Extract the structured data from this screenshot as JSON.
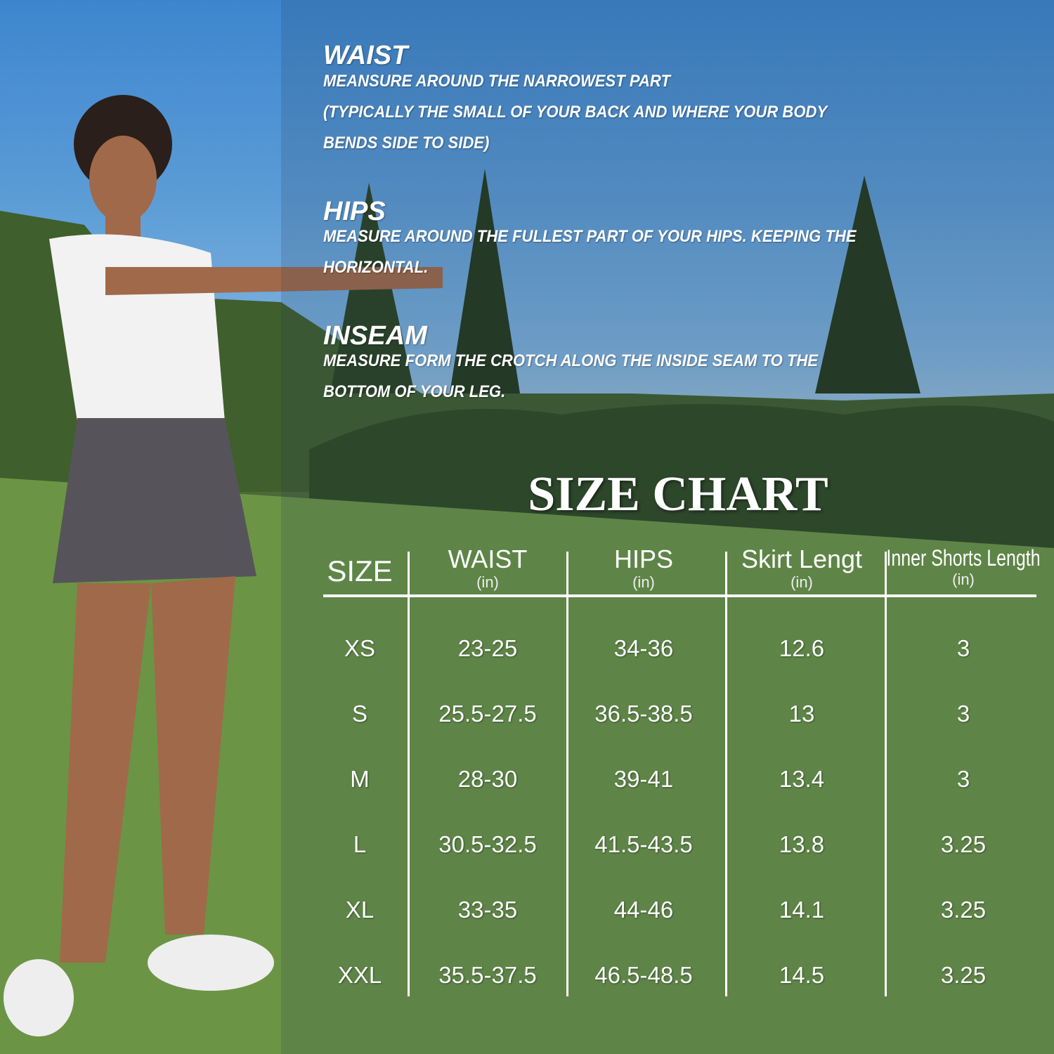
{
  "measurements": [
    {
      "heading": "WAIST",
      "lines": [
        "MEANSURE AROUND THE NARROWEST PART",
        "(TYPICALLY THE SMALL OF YOUR BACK AND WHERE YOUR BODY",
        "BENDS SIDE TO SIDE)"
      ]
    },
    {
      "heading": "HIPS",
      "lines": [
        "MEASURE AROUND THE FULLEST PART OF YOUR HIPS. KEEPING THE",
        "HORIZONTAL."
      ]
    },
    {
      "heading": "INSEAM",
      "lines": [
        "MEASURE FORM THE CROTCH ALONG THE INSIDE SEAM TO THE",
        "BOTTOM OF YOUR LEG."
      ]
    }
  ],
  "size_chart": {
    "title": "SIZE CHART",
    "columns": [
      {
        "label": "SIZE",
        "unit": ""
      },
      {
        "label": "WAIST",
        "unit": "(in)"
      },
      {
        "label": "HIPS",
        "unit": "(in)"
      },
      {
        "label": "Skirt Lengt",
        "unit": "(in)"
      },
      {
        "label": "Inner Shorts Length",
        "unit": "(in)"
      }
    ],
    "rows": [
      [
        "XS",
        "23-25",
        "34-36",
        "12.6",
        "3"
      ],
      [
        "S",
        "25.5-27.5",
        "36.5-38.5",
        "13",
        "3"
      ],
      [
        "M",
        "28-30",
        "39-41",
        "13.4",
        "3"
      ],
      [
        "L",
        "30.5-32.5",
        "41.5-43.5",
        "13.8",
        "3.25"
      ],
      [
        "XL",
        "33-35",
        "44-46",
        "14.1",
        "3.25"
      ],
      [
        "XXL",
        "35.5-37.5",
        "46.5-48.5",
        "14.5",
        "3.25"
      ]
    ]
  },
  "colors": {
    "sky": "#4a8fd2",
    "grass": "#6a9442",
    "text": "#ffffff"
  }
}
